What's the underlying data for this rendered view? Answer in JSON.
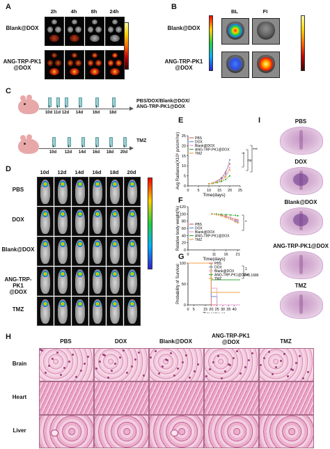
{
  "panels": {
    "A": {
      "letter": "A",
      "columns": [
        "2h",
        "4h",
        "8h",
        "24h"
      ],
      "rows": [
        "Blank@DOX",
        "ANG-TRP-PK1\n@DOX"
      ]
    },
    "B": {
      "letter": "B",
      "columns": [
        "BL",
        "FI"
      ],
      "rows": [
        "Blank@DOX",
        "ANG-TRP-PK1\n@DOX"
      ]
    },
    "C": {
      "letter": "C",
      "group1_label": "PBS/DOX/Blank@DOX/\nANG-TRP-PK1@DOX",
      "group1_days": [
        "10d",
        "11d",
        "12d",
        "14d",
        "16d",
        "18d"
      ],
      "group2_label": "TMZ",
      "group2_days": [
        "10d",
        "12d",
        "14d",
        "16d",
        "18d",
        "20d"
      ]
    },
    "D": {
      "letter": "D",
      "columns": [
        "10d",
        "12d",
        "14d",
        "16d",
        "18d",
        "20d"
      ],
      "rows": [
        "PBS",
        "DOX",
        "Blank@DOX",
        "ANG-TRP-PK1\n@DOX",
        "TMZ"
      ]
    },
    "E": {
      "letter": "E",
      "ylabel": "Avg Radiance(X10⁶ p/s/cm²/sr)",
      "xlabel": "Time(days)",
      "legend": [
        "PBS",
        "DOX",
        "Blank@DOX",
        "ANG-TRP-PK1@DOX",
        "TMZ"
      ],
      "sig": [
        "*",
        "ns",
        "***"
      ]
    },
    "F": {
      "letter": "F",
      "ylabel": "Relative body weight(%)",
      "xlabel": "Time(days)",
      "legend": [
        "PBS",
        "DOX",
        "Blank@DOX",
        "ANG-TRP-PK1@DOX",
        "TMZ"
      ],
      "sig": [
        "*"
      ]
    },
    "G": {
      "letter": "G",
      "ylabel": "Probability of Survival",
      "xlabel": "Time(days)",
      "legend": [
        "PBS",
        "DOX",
        "Blank@DOX",
        "ANG-TRP-PK1@DOX",
        "TMZ"
      ],
      "sig": [
        "1",
        "P=0.1686"
      ]
    },
    "I": {
      "letter": "I",
      "labels": [
        "PBS",
        "DOX",
        "Blank@DOX",
        "ANG-TRP-PK1@DOX",
        "TMZ"
      ]
    },
    "H": {
      "letter": "H",
      "columns": [
        "PBS",
        "DOX",
        "Blank@DOX",
        "ANG-TRP-PK1\n@DOX",
        "TMZ"
      ],
      "rows": [
        "Brain",
        "Heart",
        "Liver"
      ]
    }
  },
  "colors": {
    "PBS": "#e06060",
    "DOX": "#5b8fd9",
    "Blank@DOX": "#e0a0d0",
    "ANG-TRP-PK1@DOX": "#3aa63a",
    "TMZ": "#f0a040",
    "he_pink": "#e58fb6",
    "he_dark": "#9a3f7a"
  },
  "chart_data": [
    {
      "type": "line",
      "panel": "E",
      "x": [
        10,
        12,
        14,
        16,
        18,
        20
      ],
      "series": [
        {
          "name": "PBS",
          "values": [
            1,
            1.5,
            2.5,
            4,
            7,
            11
          ]
        },
        {
          "name": "DOX",
          "values": [
            1,
            1.5,
            2.3,
            3.5,
            6,
            13
          ]
        },
        {
          "name": "Blank@DOX",
          "values": [
            1,
            1.3,
            2,
            3,
            5,
            9
          ]
        },
        {
          "name": "ANG-TRP-PK1@DOX",
          "values": [
            1,
            1.2,
            1.6,
            2.2,
            3.2,
            5
          ]
        },
        {
          "name": "TMZ",
          "values": [
            1,
            1.3,
            1.9,
            2.8,
            4.5,
            8
          ]
        }
      ],
      "xlabel": "Time(days)",
      "ylabel": "Avg Radiance(X10⁶ p/s/cm²/sr)",
      "xlim": [
        0,
        25
      ],
      "ylim": [
        0,
        25
      ],
      "xticks": [
        0,
        5,
        10,
        15,
        20,
        25
      ],
      "yticks": [
        0,
        5,
        10,
        15,
        20,
        25
      ]
    },
    {
      "type": "line",
      "panel": "F",
      "x": [
        10,
        12,
        14,
        16,
        18,
        20,
        21
      ],
      "series": [
        {
          "name": "PBS",
          "values": [
            100,
            99,
            97,
            94,
            90,
            85,
            83
          ]
        },
        {
          "name": "DOX",
          "values": [
            100,
            98,
            95,
            91,
            86,
            80,
            78
          ]
        },
        {
          "name": "Blank@DOX",
          "values": [
            100,
            98,
            96,
            92,
            88,
            83,
            81
          ]
        },
        {
          "name": "ANG-TRP-PK1@DOX",
          "values": [
            100,
            100,
            99,
            98,
            97,
            96,
            95
          ]
        },
        {
          "name": "TMZ",
          "values": [
            100,
            98,
            95,
            90,
            85,
            78,
            75
          ]
        }
      ],
      "xlabel": "Time(days)",
      "ylabel": "Relative body weight(%)",
      "xlim": [
        0,
        22
      ],
      "ylim": [
        0,
        120
      ],
      "xticks": [
        0,
        11,
        16,
        21
      ],
      "yticks": [
        0,
        20,
        40,
        60,
        80,
        100,
        120
      ]
    },
    {
      "type": "line",
      "panel": "G",
      "x": [
        0,
        15,
        20,
        25,
        30,
        35,
        40,
        45
      ],
      "series": [
        {
          "name": "PBS",
          "values": [
            100,
            100,
            0,
            0,
            0,
            0,
            0,
            0
          ]
        },
        {
          "name": "DOX",
          "values": [
            100,
            100,
            20,
            0,
            0,
            0,
            0,
            0
          ]
        },
        {
          "name": "Blank@DOX",
          "values": [
            100,
            100,
            40,
            0,
            0,
            0,
            0,
            0
          ]
        },
        {
          "name": "ANG-TRP-PK1@DOX",
          "values": [
            100,
            100,
            60,
            60,
            60,
            60,
            60,
            60
          ]
        },
        {
          "name": "TMZ",
          "values": [
            100,
            100,
            30,
            30,
            30,
            30,
            30,
            30
          ]
        }
      ],
      "xlabel": "Time(days)",
      "ylabel": "Probability of Survival",
      "xlim": [
        0,
        45
      ],
      "ylim": [
        0,
        100
      ],
      "xticks": [
        0,
        5,
        15,
        20,
        25,
        30,
        35,
        40
      ],
      "yticks": [
        0,
        50,
        100
      ]
    }
  ]
}
